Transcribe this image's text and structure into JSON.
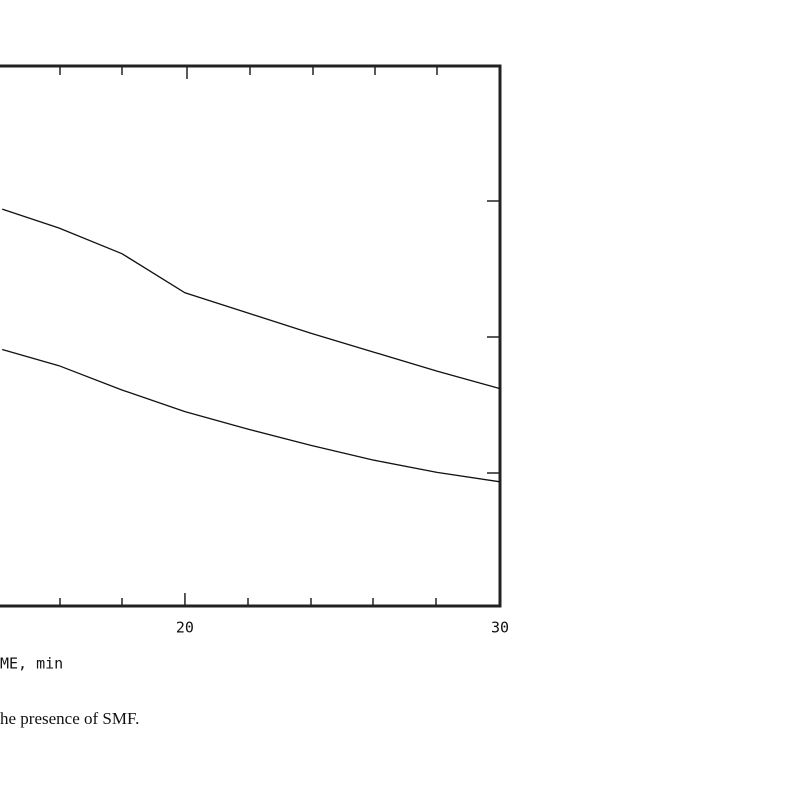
{
  "chart_data": {
    "type": "line",
    "x_label": "ME, min",
    "caption": "he presence of SMF.",
    "xlim": [
      14.13,
      30
    ],
    "xticks": [
      20,
      30
    ],
    "ylim": [
      0,
      4
    ],
    "x": [
      14.2,
      16,
      18,
      20,
      22,
      24,
      26,
      28,
      30
    ],
    "series": [
      {
        "color": "#111111",
        "values": [
          2.94,
          2.8,
          2.61,
          2.32,
          2.17,
          2.02,
          1.88,
          1.74,
          1.61
        ]
      },
      {
        "color": "#111111",
        "values": [
          1.9,
          1.78,
          1.6,
          1.44,
          1.31,
          1.19,
          1.08,
          0.99,
          0.92
        ]
      }
    ]
  }
}
